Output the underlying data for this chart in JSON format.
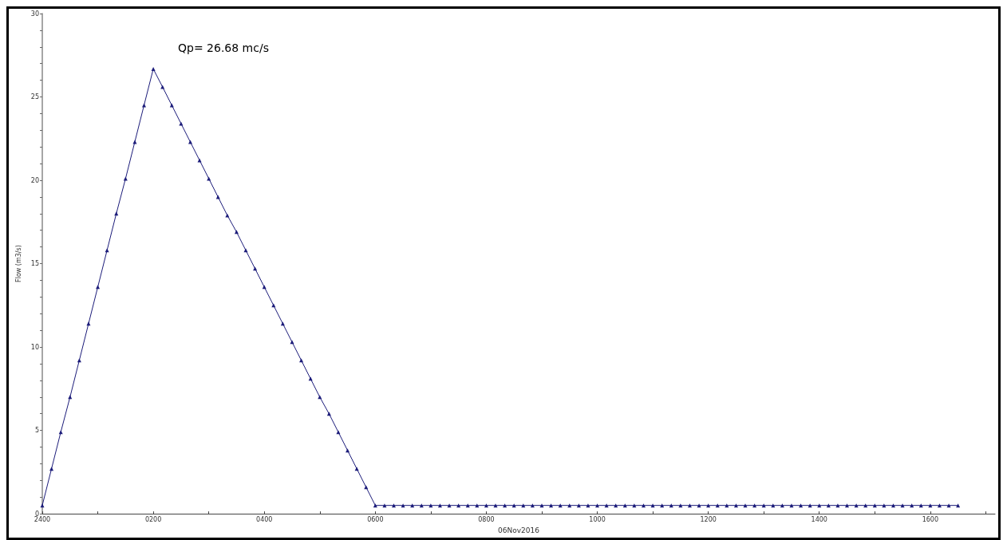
{
  "chart_data": {
    "type": "line",
    "xlabel": "06Nov2016",
    "ylabel": "Flow (m3/s)",
    "annotations": [
      "Qp= 26.68 mc/s"
    ],
    "categories": [
      "2400",
      null,
      null,
      null,
      null,
      null,
      null,
      null,
      null,
      null,
      null,
      null,
      "0200",
      null,
      null,
      null,
      null,
      null,
      null,
      null,
      null,
      null,
      null,
      null,
      "0400",
      null,
      null,
      null,
      null,
      null,
      null,
      null,
      null,
      null,
      null,
      null,
      "0600",
      null,
      null,
      null,
      null,
      null,
      null,
      null,
      null,
      null,
      null,
      null,
      "0800",
      null,
      null,
      null,
      null,
      null,
      null,
      null,
      null,
      null,
      null,
      null,
      "1000",
      null,
      null,
      null,
      null,
      null,
      null,
      null,
      null,
      null,
      null,
      null,
      "1200",
      null,
      null,
      null,
      null,
      null,
      null,
      null,
      null,
      null,
      null,
      null,
      "1400",
      null,
      null,
      null,
      null,
      null,
      null,
      null,
      null,
      null,
      null,
      null,
      "1600",
      null,
      null,
      null,
      null,
      null,
      null,
      null
    ],
    "series": [
      {
        "color": "#1c1c7a",
        "values": [
          0.5,
          2.7,
          4.9,
          7.0,
          9.2,
          11.4,
          13.6,
          15.8,
          18.0,
          20.1,
          22.3,
          24.5,
          26.68,
          25.6,
          24.5,
          23.4,
          22.3,
          21.2,
          20.1,
          19.0,
          17.9,
          16.9,
          15.8,
          14.7,
          13.6,
          12.5,
          11.4,
          10.3,
          9.2,
          8.1,
          7.0,
          6.0,
          4.9,
          3.8,
          2.7,
          1.6,
          0.5,
          0.5,
          0.5,
          0.5,
          0.5,
          0.5,
          0.5,
          0.5,
          0.5,
          0.5,
          0.5,
          0.5,
          0.5,
          0.5,
          0.5,
          0.5,
          0.5,
          0.5,
          0.5,
          0.5,
          0.5,
          0.5,
          0.5,
          0.5,
          0.5,
          0.5,
          0.5,
          0.5,
          0.5,
          0.5,
          0.5,
          0.5,
          0.5,
          0.5,
          0.5,
          0.5,
          0.5,
          0.5,
          0.5,
          0.5,
          0.5,
          0.5,
          0.5,
          0.5,
          0.5,
          0.5,
          0.5,
          0.5,
          0.5,
          0.5,
          0.5,
          0.5,
          0.5,
          0.5,
          0.5,
          0.5,
          0.5,
          0.5,
          0.5,
          0.5,
          0.5,
          0.5,
          0.5,
          0.5,
          null,
          null,
          null,
          null
        ]
      }
    ],
    "ylim": [
      0,
      30
    ],
    "yticks": [
      0,
      {
        "value": 1,
        "label": null
      },
      {
        "value": 2,
        "label": null
      },
      {
        "value": 3,
        "label": null
      },
      {
        "value": 4,
        "label": null
      },
      5,
      {
        "value": 6,
        "label": null
      },
      {
        "value": 7,
        "label": null
      },
      {
        "value": 8,
        "label": null
      },
      {
        "value": 9,
        "label": null
      },
      10,
      {
        "value": 11,
        "label": null
      },
      {
        "value": 12,
        "label": null
      },
      {
        "value": 13,
        "label": null
      },
      {
        "value": 14,
        "label": null
      },
      15,
      {
        "value": 16,
        "label": null
      },
      {
        "value": 17,
        "label": null
      },
      {
        "value": 18,
        "label": null
      },
      {
        "value": 19,
        "label": null
      },
      20,
      {
        "value": 21,
        "label": null
      },
      {
        "value": 22,
        "label": null
      },
      {
        "value": 23,
        "label": null
      },
      {
        "value": 24,
        "label": null
      },
      25,
      {
        "value": 26,
        "label": null
      },
      {
        "value": 27,
        "label": null
      },
      {
        "value": 28,
        "label": null
      },
      {
        "value": 29,
        "label": null
      },
      30
    ],
    "grid": false,
    "marker": "triangle",
    "line_style": "solid"
  }
}
